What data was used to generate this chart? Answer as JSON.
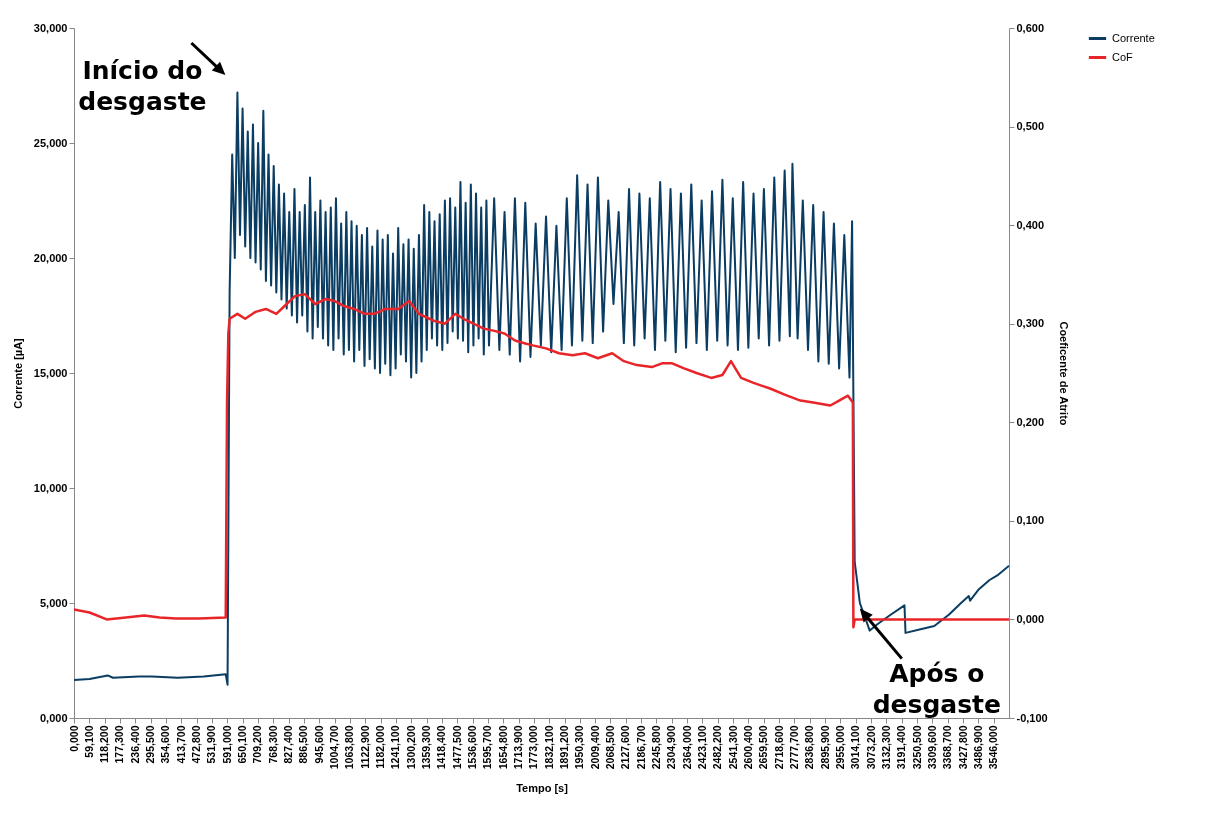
{
  "chart_data": {
    "type": "line",
    "xlabel": "Tempo [s]",
    "ylabel": "Corrente [µA]",
    "y2label": "Coeficente de Atrito",
    "legend": "right",
    "marker": "none",
    "line_style": "solid",
    "xlim": [
      0,
      3605
    ],
    "ylim": [
      0,
      30
    ],
    "y2lim": [
      -0.1,
      0.6
    ],
    "xticks": [
      {
        "value": 0,
        "label": "0,000"
      },
      {
        "value": 59.1,
        "label": "59,100"
      },
      {
        "value": 118.2,
        "label": "118,200"
      },
      {
        "value": 177.3,
        "label": "177,300"
      },
      {
        "value": 236.4,
        "label": "236,400"
      },
      {
        "value": 295.5,
        "label": "295,500"
      },
      {
        "value": 354.6,
        "label": "354,600"
      },
      {
        "value": 413.7,
        "label": "413,700"
      },
      {
        "value": 472.8,
        "label": "472,800"
      },
      {
        "value": 531.9,
        "label": "531,900"
      },
      {
        "value": 591,
        "label": "591,000"
      },
      {
        "value": 650.1,
        "label": "650,100"
      },
      {
        "value": 709.2,
        "label": "709,200"
      },
      {
        "value": 768.3,
        "label": "768,300"
      },
      {
        "value": 827.4,
        "label": "827,400"
      },
      {
        "value": 886.5,
        "label": "886,500"
      },
      {
        "value": 945.6,
        "label": "945,600"
      },
      {
        "value": 1004.7,
        "label": "1004,700"
      },
      {
        "value": 1063.8,
        "label": "1063,800"
      },
      {
        "value": 1122.9,
        "label": "1122,900"
      },
      {
        "value": 1182,
        "label": "1182,000"
      },
      {
        "value": 1241.1,
        "label": "1241,100"
      },
      {
        "value": 1300.2,
        "label": "1300,200"
      },
      {
        "value": 1359.3,
        "label": "1359,300"
      },
      {
        "value": 1418.4,
        "label": "1418,400"
      },
      {
        "value": 1477.5,
        "label": "1477,500"
      },
      {
        "value": 1536.6,
        "label": "1536,600"
      },
      {
        "value": 1595.7,
        "label": "1595,700"
      },
      {
        "value": 1654.8,
        "label": "1654,800"
      },
      {
        "value": 1713.9,
        "label": "1713,900"
      },
      {
        "value": 1773,
        "label": "1773,000"
      },
      {
        "value": 1832.1,
        "label": "1832,100"
      },
      {
        "value": 1891.2,
        "label": "1891,200"
      },
      {
        "value": 1950.3,
        "label": "1950,300"
      },
      {
        "value": 2009.4,
        "label": "2009,400"
      },
      {
        "value": 2068.5,
        "label": "2068,500"
      },
      {
        "value": 2127.6,
        "label": "2127,600"
      },
      {
        "value": 2186.7,
        "label": "2186,700"
      },
      {
        "value": 2245.8,
        "label": "2245,800"
      },
      {
        "value": 2304.9,
        "label": "2304,900"
      },
      {
        "value": 2364,
        "label": "2364,000"
      },
      {
        "value": 2423.1,
        "label": "2423,100"
      },
      {
        "value": 2482.2,
        "label": "2482,200"
      },
      {
        "value": 2541.3,
        "label": "2541,300"
      },
      {
        "value": 2600.4,
        "label": "2600,400"
      },
      {
        "value": 2659.5,
        "label": "2659,500"
      },
      {
        "value": 2718.6,
        "label": "2718,600"
      },
      {
        "value": 2777.7,
        "label": "2777,700"
      },
      {
        "value": 2836.8,
        "label": "2836,800"
      },
      {
        "value": 2895.9,
        "label": "2895,900"
      },
      {
        "value": 2955,
        "label": "2955,000"
      },
      {
        "value": 3014.1,
        "label": "3014,100"
      },
      {
        "value": 3073.2,
        "label": "3073,200"
      },
      {
        "value": 3132.3,
        "label": "3132,300"
      },
      {
        "value": 3191.4,
        "label": "3191,400"
      },
      {
        "value": 3250.5,
        "label": "3250,500"
      },
      {
        "value": 3309.6,
        "label": "3309,600"
      },
      {
        "value": 3368.7,
        "label": "3368,700"
      },
      {
        "value": 3427.8,
        "label": "3427,800"
      },
      {
        "value": 3486.9,
        "label": "3486,900"
      },
      {
        "value": 3546,
        "label": "3546,000"
      }
    ],
    "yticks": [
      {
        "value": 0,
        "label": "0,000"
      },
      {
        "value": 5,
        "label": "5,000"
      },
      {
        "value": 10,
        "label": "10,000"
      },
      {
        "value": 15,
        "label": "15,000"
      },
      {
        "value": 20,
        "label": "20,000"
      },
      {
        "value": 25,
        "label": "25,000"
      },
      {
        "value": 30,
        "label": "30,000"
      }
    ],
    "y2ticks": [
      {
        "value": -0.1,
        "label": "-0,100"
      },
      {
        "value": 0,
        "label": "0,000"
      },
      {
        "value": 0.1,
        "label": "0,100"
      },
      {
        "value": 0.2,
        "label": "0,200"
      },
      {
        "value": 0.3,
        "label": "0,300"
      },
      {
        "value": 0.4,
        "label": "0,400"
      },
      {
        "value": 0.5,
        "label": "0,500"
      },
      {
        "value": 0.6,
        "label": "0,600"
      }
    ],
    "series": [
      {
        "name": "Corrente",
        "color": "#0b3d62",
        "x": [
          0,
          60,
          130,
          150,
          250,
          300,
          400,
          500,
          585,
          592,
          596,
          600,
          610,
          620,
          630,
          640,
          650,
          660,
          670,
          680,
          690,
          700,
          710,
          720,
          730,
          740,
          750,
          760,
          770,
          780,
          790,
          800,
          810,
          820,
          830,
          840,
          850,
          860,
          870,
          880,
          890,
          900,
          910,
          920,
          930,
          940,
          950,
          960,
          970,
          980,
          990,
          1000,
          1010,
          1020,
          1030,
          1040,
          1050,
          1060,
          1070,
          1080,
          1090,
          1100,
          1110,
          1120,
          1130,
          1140,
          1150,
          1160,
          1170,
          1180,
          1190,
          1200,
          1210,
          1220,
          1230,
          1240,
          1250,
          1260,
          1270,
          1280,
          1290,
          1300,
          1310,
          1320,
          1330,
          1340,
          1350,
          1360,
          1370,
          1380,
          1390,
          1400,
          1410,
          1420,
          1430,
          1440,
          1450,
          1460,
          1470,
          1480,
          1490,
          1500,
          1510,
          1520,
          1530,
          1540,
          1550,
          1560,
          1570,
          1580,
          1590,
          1600,
          1620,
          1640,
          1660,
          1680,
          1700,
          1720,
          1740,
          1760,
          1780,
          1800,
          1820,
          1840,
          1860,
          1880,
          1900,
          1920,
          1940,
          1960,
          1980,
          2000,
          2020,
          2040,
          2060,
          2080,
          2100,
          2120,
          2140,
          2160,
          2180,
          2200,
          2220,
          2240,
          2260,
          2280,
          2300,
          2320,
          2340,
          2360,
          2380,
          2400,
          2420,
          2440,
          2460,
          2480,
          2500,
          2520,
          2540,
          2560,
          2580,
          2600,
          2620,
          2640,
          2660,
          2680,
          2700,
          2720,
          2740,
          2760,
          2770,
          2790,
          2810,
          2830,
          2850,
          2870,
          2890,
          2910,
          2930,
          2950,
          2970,
          2990,
          3000,
          3005,
          3010,
          3030,
          3068,
          3100,
          3150,
          3202,
          3206,
          3260,
          3317,
          3374,
          3420,
          3450,
          3455,
          3489,
          3530,
          3560,
          3603
        ],
        "values": [
          1.65,
          1.7,
          1.85,
          1.75,
          1.8,
          1.8,
          1.75,
          1.8,
          1.9,
          1.45,
          10,
          18.5,
          24.5,
          20,
          27.2,
          21,
          26.5,
          20.5,
          25.5,
          20,
          25.8,
          19.8,
          25,
          19.5,
          26.4,
          19,
          24.5,
          18.8,
          24,
          18.5,
          23.2,
          18.2,
          22.8,
          17.8,
          22,
          17.5,
          23,
          17.2,
          22,
          17.5,
          22.3,
          16.8,
          23.5,
          16.5,
          22,
          17,
          22.5,
          16.5,
          22,
          16.2,
          22.2,
          16,
          22.6,
          16.5,
          21.5,
          15.8,
          22,
          16,
          21.6,
          15.5,
          21.4,
          16,
          21,
          15.3,
          21.3,
          15.6,
          20.5,
          15.2,
          21.2,
          15,
          20.8,
          15.4,
          21,
          14.9,
          20.2,
          15.2,
          21.3,
          15.8,
          20.6,
          15.5,
          20.8,
          14.8,
          20.4,
          15,
          21,
          15.5,
          22.3,
          16,
          22,
          16.5,
          21.6,
          16.2,
          21.9,
          16,
          22.5,
          16.3,
          22.6,
          16.8,
          22.2,
          16.5,
          23.3,
          16.4,
          22.4,
          15.9,
          23.2,
          16.2,
          22.8,
          16.5,
          22.2,
          15.8,
          22.5,
          16.2,
          22.6,
          16,
          22,
          15.8,
          22.6,
          15.5,
          22.4,
          15.7,
          21.5,
          16.2,
          21.8,
          15.9,
          21.4,
          16,
          22.6,
          16.2,
          23.6,
          16.4,
          23.2,
          16.3,
          23.5,
          16.8,
          22.5,
          18,
          22,
          16.3,
          23,
          16.2,
          22.8,
          16.5,
          22.6,
          16,
          23.3,
          16.4,
          23,
          15.9,
          22.8,
          16.1,
          23.2,
          16.3,
          22.5,
          16,
          22.9,
          16.4,
          23.4,
          16.2,
          22.6,
          16,
          23.3,
          16.1,
          22.8,
          16.5,
          23,
          16.2,
          23.5,
          16.4,
          23.8,
          16.6,
          24.1,
          16.5,
          22.5,
          16,
          22.3,
          15.5,
          22,
          15.4,
          21.5,
          15.2,
          21,
          14.8,
          21.6,
          14,
          6.8,
          5,
          3.8,
          4.1,
          4.5,
          4.9,
          3.7,
          3.85,
          4,
          4.5,
          5,
          5.3,
          5.1,
          5.6,
          6,
          6.2,
          6.6
        ]
      },
      {
        "name": "CoF",
        "color": "#e8262a",
        "axis": "y2",
        "x": [
          0,
          60,
          126,
          200,
          271,
          330,
          394,
          480,
          585,
          590,
          595,
          600,
          630,
          660,
          700,
          740,
          780,
          820,
          852,
          890,
          930,
          970,
          1005,
          1040,
          1080,
          1120,
          1158,
          1200,
          1250,
          1292,
          1330,
          1387,
          1430,
          1470,
          1502,
          1540,
          1580,
          1617,
          1660,
          1700,
          1740,
          1769,
          1820,
          1870,
          1922,
          1970,
          2020,
          2075,
          2120,
          2170,
          2228,
          2270,
          2304,
          2350,
          2400,
          2457,
          2500,
          2533,
          2572,
          2620,
          2686,
          2740,
          2801,
          2850,
          2916,
          2950,
          2984,
          3003,
          3005,
          3010,
          3100,
          3200,
          3300,
          3400,
          3500,
          3603
        ],
        "values": [
          0.01,
          0.007,
          0,
          0.002,
          0.004,
          0.002,
          0.001,
          0.001,
          0.002,
          0.22,
          0.29,
          0.305,
          0.31,
          0.305,
          0.312,
          0.315,
          0.31,
          0.32,
          0.328,
          0.33,
          0.32,
          0.325,
          0.323,
          0.318,
          0.315,
          0.31,
          0.31,
          0.315,
          0.315,
          0.323,
          0.31,
          0.303,
          0.3,
          0.31,
          0.305,
          0.3,
          0.295,
          0.293,
          0.29,
          0.283,
          0.28,
          0.278,
          0.275,
          0.27,
          0.268,
          0.27,
          0.265,
          0.27,
          0.262,
          0.258,
          0.256,
          0.26,
          0.26,
          0.255,
          0.25,
          0.245,
          0.248,
          0.262,
          0.245,
          0.24,
          0.234,
          0.228,
          0.222,
          0.22,
          0.217,
          0.222,
          0.227,
          0.22,
          -0.008,
          0,
          0,
          0,
          0,
          0,
          0,
          0
        ]
      }
    ],
    "annotations": [
      {
        "text": "Início do desgaste",
        "x": 630,
        "y": 27
      },
      {
        "text": "Após o desgaste",
        "x": 3076,
        "y": 3.8
      }
    ]
  }
}
